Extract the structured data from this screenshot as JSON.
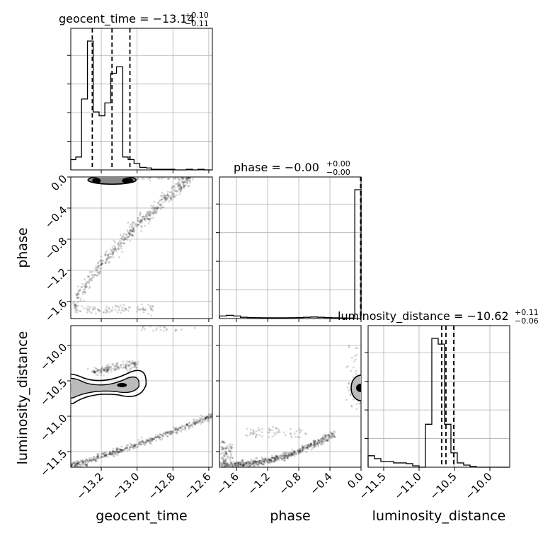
{
  "chart_data": {
    "type": "scatter",
    "variables": [
      {
        "name": "geocent_time",
        "axis_label": "geocent_time",
        "range": [
          -13.37,
          -12.58
        ],
        "ticks": [
          -13.2,
          -13.0,
          -12.8,
          -12.6
        ],
        "tick_labels": [
          "−13.2",
          "−13.0",
          "−12.8",
          "−12.6"
        ],
        "title": {
          "main": "geocent_time = −13.14",
          "upper": "+0.10",
          "lower": "−0.11"
        },
        "quantiles": [
          -13.25,
          -13.14,
          -13.04
        ],
        "histogram": {
          "edges": [
            -13.37,
            -13.342,
            -13.31,
            -13.277,
            -13.245,
            -13.212,
            -13.18,
            -13.147,
            -13.115,
            -13.08,
            -13.05,
            -13.017,
            -12.985,
            -12.95,
            -12.92,
            -12.885,
            -12.855,
            -12.82,
            -12.79,
            -12.755,
            -12.725,
            -12.69,
            -12.66,
            -12.625,
            -12.58
          ],
          "counts": [
            0.08,
            0.1,
            0.55,
            1.0,
            0.45,
            0.42,
            0.52,
            0.75,
            0.8,
            0.1,
            0.08,
            0.05,
            0.02,
            0.015,
            0.005,
            0.005,
            0.005,
            0.005,
            0.0,
            0.0,
            0.005,
            0.0,
            0.005,
            0.0
          ]
        }
      },
      {
        "name": "phase",
        "axis_label": "phase",
        "range": [
          -1.82,
          0.0
        ],
        "ticks": [
          -1.6,
          -1.2,
          -0.8,
          -0.4,
          0.0
        ],
        "tick_labels": [
          "−1.6",
          "−1.2",
          "−0.8",
          "−0.4",
          "0.0"
        ],
        "title": {
          "main": "phase = −0.00",
          "upper": "+0.00",
          "lower": "−0.00"
        },
        "quantiles": [
          -0.005,
          -0.003,
          0.0
        ],
        "histogram": {
          "edges": [
            -1.82,
            -1.73,
            -1.64,
            -1.55,
            -1.46,
            -1.37,
            -1.28,
            -1.19,
            -1.1,
            -1.01,
            -0.92,
            -0.83,
            -0.74,
            -0.65,
            -0.56,
            -0.47,
            -0.38,
            -0.29,
            -0.2,
            -0.11,
            -0.08,
            0.0
          ],
          "counts": [
            0.02,
            0.025,
            0.02,
            0.01,
            0.008,
            0.007,
            0.006,
            0.006,
            0.006,
            0.006,
            0.007,
            0.008,
            0.01,
            0.012,
            0.01,
            0.008,
            0.006,
            0.005,
            0.004,
            0.0,
            1.0
          ]
        }
      },
      {
        "name": "luminosity_distance",
        "axis_label": "luminosity_distance",
        "range": [
          -11.72,
          -9.72
        ],
        "ticks": [
          -11.5,
          -11.0,
          -10.5,
          -10.0
        ],
        "tick_labels": [
          "−11.5",
          "−11.0",
          "−10.5",
          "−10.0"
        ],
        "title": {
          "main": "luminosity_distance = −10.62",
          "upper": "+0.11",
          "lower": "−0.06"
        },
        "quantiles": [
          -10.68,
          -10.62,
          -10.51
        ],
        "histogram": {
          "edges": [
            -11.72,
            -11.63,
            -11.54,
            -11.45,
            -11.36,
            -11.27,
            -11.18,
            -11.09,
            -11.0,
            -10.91,
            -10.82,
            -10.73,
            -10.64,
            -10.55,
            -10.46,
            -10.37,
            -10.28,
            -10.19,
            -10.1,
            -10.01,
            -9.92,
            -9.83,
            -9.72
          ],
          "counts": [
            0.08,
            0.06,
            0.04,
            0.04,
            0.03,
            0.03,
            0.025,
            0.01,
            0.0,
            0.3,
            0.9,
            0.86,
            0.3,
            0.1,
            0.03,
            0.015,
            0.005,
            0.0,
            0.0,
            0.0,
            0.0,
            0.0
          ]
        }
      }
    ],
    "pairs": [
      {
        "x": "geocent_time",
        "y": "phase",
        "contour_center": [
          -13.14,
          -0.02
        ]
      },
      {
        "x": "geocent_time",
        "y": "luminosity_distance",
        "contour_center": [
          -13.14,
          -10.6
        ]
      },
      {
        "x": "phase",
        "y": "luminosity_distance",
        "contour_center": [
          0.0,
          -10.6
        ]
      }
    ],
    "grid": true
  }
}
